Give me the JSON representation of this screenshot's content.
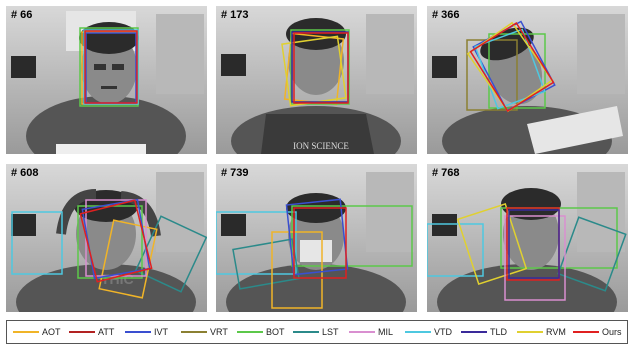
{
  "panels": [
    {
      "frame": "# 66"
    },
    {
      "frame": "# 173"
    },
    {
      "frame": "# 366"
    },
    {
      "frame": "# 608"
    },
    {
      "frame": "# 739"
    },
    {
      "frame": "# 768"
    }
  ],
  "book_text": "ION SCIENCE",
  "shirt_text": "THIC",
  "legend": [
    {
      "label": "AOT",
      "color": "#f0b428"
    },
    {
      "label": "ATT",
      "color": "#b22222"
    },
    {
      "label": "IVT",
      "color": "#3a4fd0"
    },
    {
      "label": "VRT",
      "color": "#8b8032"
    },
    {
      "label": "BOT",
      "color": "#5cc84a"
    },
    {
      "label": "LST",
      "color": "#2b8a8a"
    },
    {
      "label": "MIL",
      "color": "#d98fd0"
    },
    {
      "label": "VTD",
      "color": "#4ec8e0"
    },
    {
      "label": "TLD",
      "color": "#3a2a9a"
    },
    {
      "label": "RVM",
      "color": "#e0d030"
    },
    {
      "label": "Ours",
      "color": "#e02020"
    }
  ]
}
